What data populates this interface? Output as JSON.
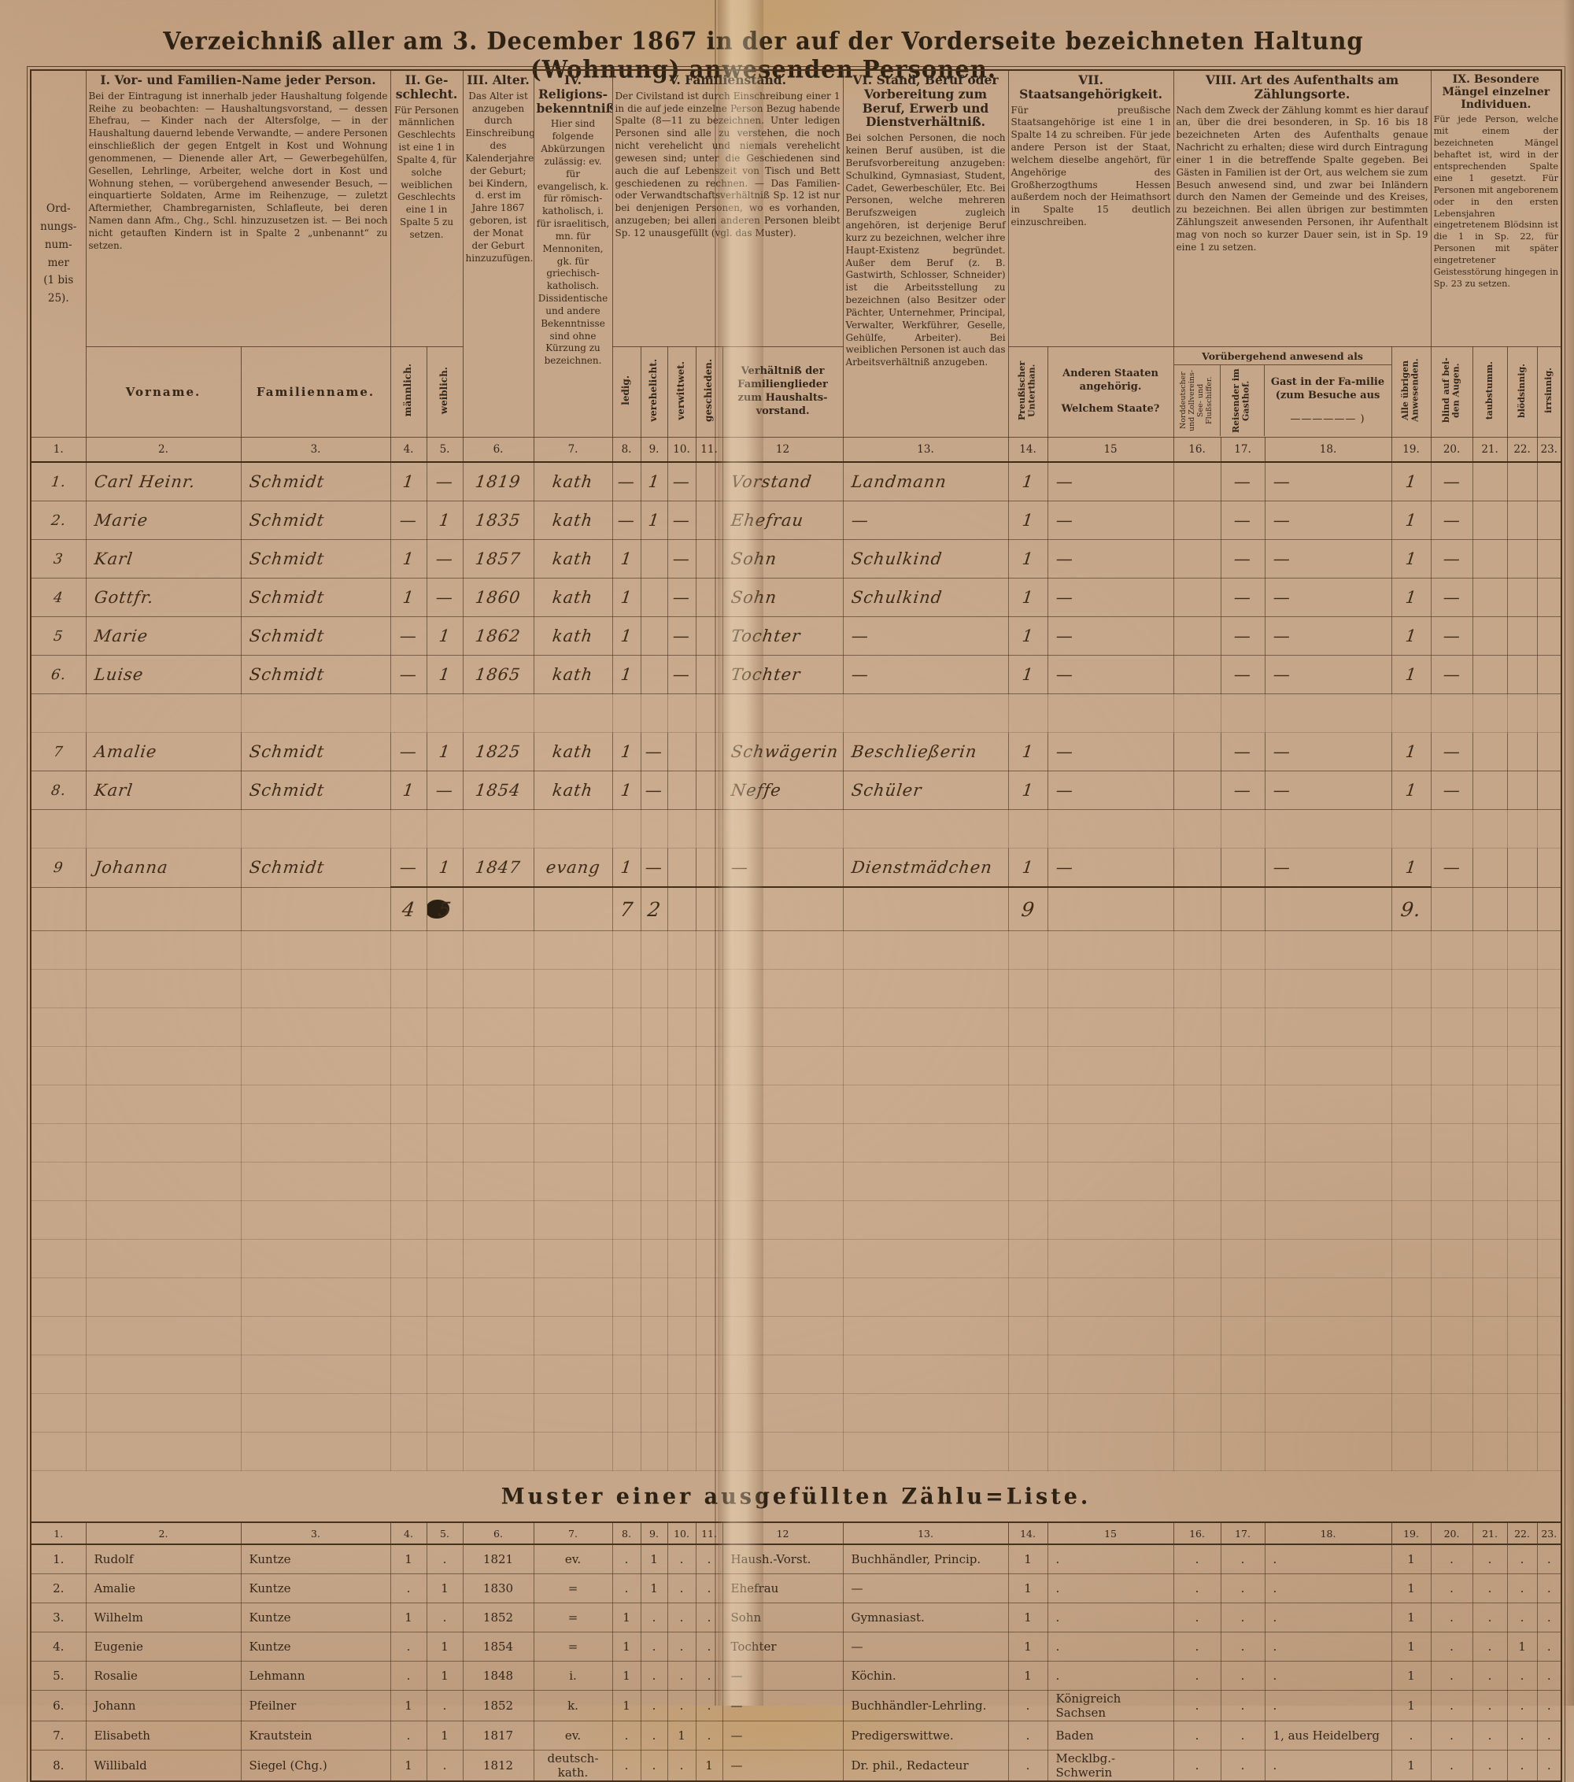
{
  "page_title": "Verzeichniß aller am 3. December 1867 in der auf der Vorderseite bezeichneten Haltung (Wohnung) anwesenden Personen.",
  "table": {
    "ord_header": "Ord-\nnungs-\nnum-\nmer\n(1 bis\n25).",
    "groups": [
      {
        "title": "I. Vor- und Familien-Name jeder Person.",
        "desc": "Bei der Eintragung ist innerhalb jeder Haushaltung folgende Reihe zu beobachten: — Haushaltungsvorstand, — dessen Ehefrau, — Kinder nach der Altersfolge, — in der Haushaltung dauernd lebende Verwandte, — andere Personen einschließlich der gegen Entgelt in Kost und Wohnung genommenen, — Dienende aller Art, — Gewerbegehülfen, Gesellen, Lehrlinge, Arbeiter, welche dort in Kost und Wohnung stehen, — vorübergehend anwesender Besuch, — einquartierte Soldaten, Arme im Reihenzuge, — zuletzt Aftermiether, Chambregarnisten, Schlafleute, bei deren Namen dann Afm., Chg., Schl. hinzuzusetzen ist. — Bei noch nicht getauften Kindern ist in Spalte 2 „unbenannt“ zu setzen."
      },
      {
        "title": "II. Ge-schlecht.",
        "desc": "Für Personen männlichen Geschlechts ist eine 1 in Spalte 4, für solche weiblichen Geschlechts eine 1 in Spalte 5 zu setzen."
      },
      {
        "title": "III. Alter.",
        "desc": "Das Alter ist anzugeben durch Einschreibung des Kalenderjahres der Geburt; bei Kindern, d. erst im Jahre 1867 geboren, ist der Monat der Geburt hinzuzufügen."
      },
      {
        "title": "IV. Religions-bekenntniß.",
        "desc": "Hier sind folgende Abkürzungen zulässig: ev. für evangelisch, k. für römisch-katholisch, i. für israelitisch, mn. für Mennoniten, gk. für griechisch-katholisch. Dissidentische und andere Bekenntnisse sind ohne Kürzung zu bezeichnen."
      },
      {
        "title": "V. Familienstand.",
        "desc": "Der Civilstand ist durch Einschreibung einer 1 in die auf jede einzelne Person Bezug habende Spalte (8—11 zu bezeichnen. Unter ledigen Personen sind alle zu verstehen, die noch nicht verehelicht und niemals verehelicht gewesen sind; unter die Geschiedenen sind auch die auf Lebenszeit von Tisch und Bett geschiedenen zu rechnen. — Das Familien- oder Verwandtschaftsverhältniß Sp. 12 ist nur bei denjenigen Personen, wo es vorhanden, anzugeben; bei allen anderen Personen bleibt Sp. 12 unausgefüllt (vgl. das Muster)."
      },
      {
        "title": "VI. Stand, Beruf oder Vorbereitung zum Beruf, Erwerb und Dienstverhältniß.",
        "desc": "Bei solchen Personen, die noch keinen Beruf ausüben, ist die Berufsvorbereitung anzugeben: Schulkind, Gymnasiast, Student, Cadet, Gewerbeschüler, Etc. Bei Personen, welche mehreren Berufszweigen zugleich angehören, ist derjenige Beruf kurz zu bezeichnen, welcher ihre Haupt-Existenz begründet. Außer dem Beruf (z. B. Gastwirth, Schlosser, Schneider) ist die Arbeitsstellung zu bezeichnen (also Besitzer oder Pächter, Unternehmer, Principal, Verwalter, Werkführer, Geselle, Gehülfe, Arbeiter). Bei weiblichen Personen ist auch das Arbeitsverhältniß anzugeben."
      },
      {
        "title": "VII. Staatsangehörigkeit.",
        "desc": "Für preußische Staatsangehörige ist eine 1 in Spalte 14 zu schreiben. Für jede andere Person ist der Staat, welchem dieselbe angehört, für Angehörige des Großherzogthums Hessen außerdem noch der Heimathsort in Spalte 15 deutlich einzuschreiben."
      },
      {
        "title": "VIII. Art des Aufenthalts am Zählungsorte.",
        "desc": "Nach dem Zweck der Zählung kommt es hier darauf an, über die drei besonderen, in Sp. 16 bis 18 bezeichneten Arten des Aufenthalts genaue Nachricht zu erhalten; diese wird durch Eintragung einer 1 in die betreffende Spalte gegeben. Bei Gästen in Familien ist der Ort, aus welchem sie zum Besuch anwesend sind, und zwar bei Inländern durch den Namen der Gemeinde und des Kreises, zu bezeichnen. Bei allen übrigen zur bestimmten Zählungszeit anwesenden Personen, ihr Aufenthalt mag von noch so kurzer Dauer sein, ist in Sp. 19 eine 1 zu setzen."
      },
      {
        "title": "IX. Besondere Mängel einzelner Individuen.",
        "desc": "Für jede Person, welche mit einem der bezeichneten Mängel behaftet ist, wird in der entsprechenden Spalte eine 1 gesetzt. Für Personen mit angeborenem oder in den ersten Lebensjahren eingetretenem Blödsinn ist die 1 in Sp. 22, für Personen mit später eingetretener Geistesstörung hingegen in Sp. 23 zu setzen."
      }
    ],
    "sub": {
      "vorname": "Vorname.",
      "familienname": "Familienname.",
      "maennlich": "männlich.",
      "weiblich": "weiblich.",
      "ledig": "ledig.",
      "verehelicht": "verehelicht.",
      "verwittwet": "verwittwet.",
      "geschieden": "geschieden.",
      "verhaeltnis": "Verhältniß der Familienglieder zum Haushalts-vorstand.",
      "preussischer": "Preußischer Unterthan.",
      "andere_staaten": "Anderen Staaten angehörig.",
      "welchem_staate": "Welchem Staate?",
      "voruebergehend": "Vorübergehend anwesend als",
      "schiffer": "Norddeutscher und Zollvereins-See- und Flußschiffer.",
      "reisender": "Reisender im Gasthof.",
      "gast": "Gast in der Fa-milie (zum Besuche aus",
      "gast_blank": "—————— )",
      "uebrige": "Alle übrigen Anwesenden.",
      "blind": "blind auf bei-den Augen.",
      "taubstumm": "taubstumm.",
      "bloedsinnig": "blödsinnig.",
      "irrsinnig": "irrsinnig."
    },
    "col_numbers": [
      "1.",
      "2.",
      "3.",
      "4.",
      "5.",
      "6.",
      "7.",
      "8.",
      "9.",
      "10.",
      "11.",
      "12",
      "13.",
      "14.",
      "15",
      "16.",
      "17.",
      "18.",
      "19.",
      "20.",
      "21.",
      "22.",
      "23."
    ],
    "rows": [
      [
        "1.",
        "Carl Heinr.",
        "Schmidt",
        "1",
        "—",
        "1819",
        "kath",
        "—",
        "1",
        "—",
        "",
        "Vorstand",
        "Landmann",
        "1",
        "—",
        "",
        "—",
        "—",
        "1",
        "—",
        "",
        "",
        ""
      ],
      [
        "2.",
        "Marie",
        "Schmidt",
        "—",
        "1",
        "1835",
        "kath",
        "—",
        "1",
        "—",
        "",
        "Ehefrau",
        "—",
        "1",
        "—",
        "",
        "—",
        "—",
        "1",
        "—",
        "",
        "",
        ""
      ],
      [
        "3",
        "Karl",
        "Schmidt",
        "1",
        "—",
        "1857",
        "kath",
        "1",
        "",
        "—",
        "",
        "Sohn",
        "Schulkind",
        "1",
        "—",
        "",
        "—",
        "—",
        "1",
        "—",
        "",
        "",
        ""
      ],
      [
        "4",
        "Gottfr.",
        "Schmidt",
        "1",
        "—",
        "1860",
        "kath",
        "1",
        "",
        "—",
        "",
        "Sohn",
        "Schulkind",
        "1",
        "—",
        "",
        "—",
        "—",
        "1",
        "—",
        "",
        "",
        ""
      ],
      [
        "5",
        "Marie",
        "Schmidt",
        "—",
        "1",
        "1862",
        "kath",
        "1",
        "",
        "—",
        "",
        "Tochter",
        "—",
        "1",
        "—",
        "",
        "—",
        "—",
        "1",
        "—",
        "",
        "",
        ""
      ],
      [
        "6.",
        "Luise",
        "Schmidt",
        "—",
        "1",
        "1865",
        "kath",
        "1",
        "",
        "—",
        "",
        "Tochter",
        "—",
        "1",
        "—",
        "",
        "—",
        "—",
        "1",
        "—",
        "",
        "",
        ""
      ],
      null,
      [
        "7",
        "Amalie",
        "Schmidt",
        "—",
        "1",
        "1825",
        "kath",
        "1",
        "—",
        "",
        "",
        "Schwägerin",
        "Beschließerin",
        "1",
        "—",
        "",
        "—",
        "—",
        "1",
        "—",
        "",
        "",
        ""
      ],
      [
        "8.",
        "Karl",
        "Schmidt",
        "1",
        "—",
        "1854",
        "kath",
        "1",
        "—",
        "",
        "",
        "Neffe",
        "Schüler",
        "1",
        "—",
        "",
        "—",
        "—",
        "1",
        "—",
        "",
        "",
        ""
      ],
      null,
      [
        "9",
        "Johanna",
        "Schmidt",
        "—",
        "1",
        "1847",
        "evang",
        "1",
        "—",
        "",
        "",
        "—",
        "Dienstmädchen",
        "1",
        "—",
        "",
        "",
        "—",
        "1",
        "—",
        "",
        "",
        ""
      ]
    ],
    "totals": [
      "",
      "",
      "",
      "4",
      "5",
      "",
      "",
      "7",
      "2",
      "",
      "",
      "",
      "",
      "9",
      "",
      "",
      "",
      "",
      "9.",
      "",
      "",
      "",
      ""
    ]
  },
  "muster": {
    "title": "Muster einer ausgefüllten Zählu=Liste.",
    "rows": [
      [
        "1.",
        "Rudolf",
        "Kuntze",
        "1",
        ".",
        "1821",
        "ev.",
        ".",
        "1",
        ".",
        ".",
        "Haush.-Vorst.",
        "Buchhändler, Princip.",
        "1",
        ".",
        ".",
        ".",
        ".",
        "1",
        ".",
        ".",
        ".",
        "."
      ],
      [
        "2.",
        "Amalie",
        "Kuntze",
        ".",
        "1",
        "1830",
        "=",
        ".",
        "1",
        ".",
        ".",
        "Ehefrau",
        "—",
        "1",
        ".",
        ".",
        ".",
        ".",
        "1",
        ".",
        ".",
        ".",
        "."
      ],
      [
        "3.",
        "Wilhelm",
        "Kuntze",
        "1",
        ".",
        "1852",
        "=",
        "1",
        ".",
        ".",
        ".",
        "Sohn",
        "Gymnasiast.",
        "1",
        ".",
        ".",
        ".",
        ".",
        "1",
        ".",
        ".",
        ".",
        "."
      ],
      [
        "4.",
        "Eugenie",
        "Kuntze",
        ".",
        "1",
        "1854",
        "=",
        "1",
        ".",
        ".",
        ".",
        "Tochter",
        "—",
        "1",
        ".",
        ".",
        ".",
        ".",
        "1",
        ".",
        ".",
        "1",
        "."
      ],
      [
        "5.",
        "Rosalie",
        "Lehmann",
        ".",
        "1",
        "1848",
        "i.",
        "1",
        ".",
        ".",
        ".",
        "—",
        "Köchin.",
        "1",
        ".",
        ".",
        ".",
        ".",
        "1",
        ".",
        ".",
        ".",
        "."
      ],
      [
        "6.",
        "Johann",
        "Pfeilner",
        "1",
        ".",
        "1852",
        "k.",
        "1",
        ".",
        ".",
        ".",
        "—",
        "Buchhändler-Lehrling.",
        ".",
        "Königreich Sachsen",
        ".",
        ".",
        ".",
        "1",
        ".",
        ".",
        ".",
        "."
      ],
      [
        "7.",
        "Elisabeth",
        "Krautstein",
        ".",
        "1",
        "1817",
        "ev.",
        ".",
        ".",
        "1",
        ".",
        "—",
        "Predigerswittwe.",
        ".",
        "Baden",
        ".",
        ".",
        "1, aus Heidelberg",
        ".",
        ".",
        ".",
        ".",
        "."
      ],
      [
        "8.",
        "Willibald",
        "Siegel (Chg.)",
        "1",
        ".",
        "1812",
        "deutsch-kath.",
        ".",
        ".",
        ".",
        "1",
        "—",
        "Dr. phil., Redacteur",
        ".",
        "Mecklbg.-Schwerin",
        ".",
        ".",
        ".",
        "1",
        ".",
        ".",
        ".",
        "."
      ]
    ]
  }
}
